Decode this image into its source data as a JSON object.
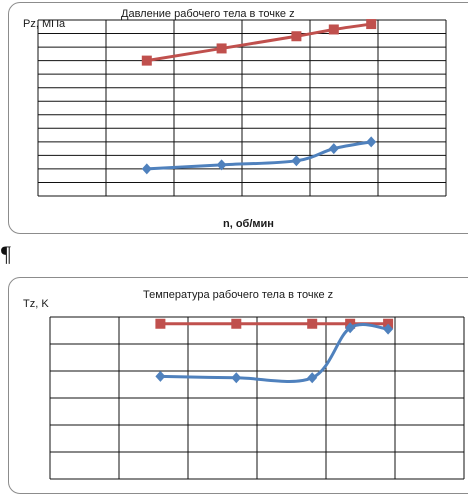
{
  "pilcrow": "¶",
  "chart_data": [
    {
      "type": "line",
      "title": "Давление рабочего тела в точке z",
      "ylabel": "Pz, МПа",
      "xlabel": "n, об/мин",
      "grid": true,
      "legend": "none",
      "xlim": [
        0,
        6
      ],
      "ylim": [
        0,
        13
      ],
      "colors": [
        "#c0504d",
        "#4f81bd"
      ],
      "series": [
        {
          "marker": "square-icon",
          "x": [
            1.6,
            2.7,
            3.8,
            4.35,
            4.9
          ],
          "y": [
            10.0,
            10.9,
            11.8,
            12.3,
            12.7
          ]
        },
        {
          "marker": "diamond-icon",
          "x": [
            1.6,
            2.7,
            3.8,
            4.35,
            4.9
          ],
          "y": [
            2.0,
            2.3,
            2.6,
            3.5,
            4.0
          ]
        }
      ]
    },
    {
      "type": "line",
      "title": "Температура рабочего тела в точке z",
      "ylabel": "Tz, K",
      "xlabel": "",
      "grid": true,
      "legend": "none",
      "xlim": [
        0,
        6
      ],
      "ylim": [
        0,
        6
      ],
      "colors": [
        "#c0504d",
        "#4f81bd"
      ],
      "series": [
        {
          "marker": "square-icon",
          "x": [
            1.6,
            2.7,
            3.8,
            4.35,
            4.9
          ],
          "y": [
            5.75,
            5.75,
            5.75,
            5.75,
            5.75
          ]
        },
        {
          "marker": "diamond-icon",
          "x": [
            1.6,
            2.7,
            3.8,
            4.35,
            4.9
          ],
          "y": [
            3.8,
            3.75,
            3.75,
            5.6,
            5.55
          ]
        }
      ]
    }
  ]
}
